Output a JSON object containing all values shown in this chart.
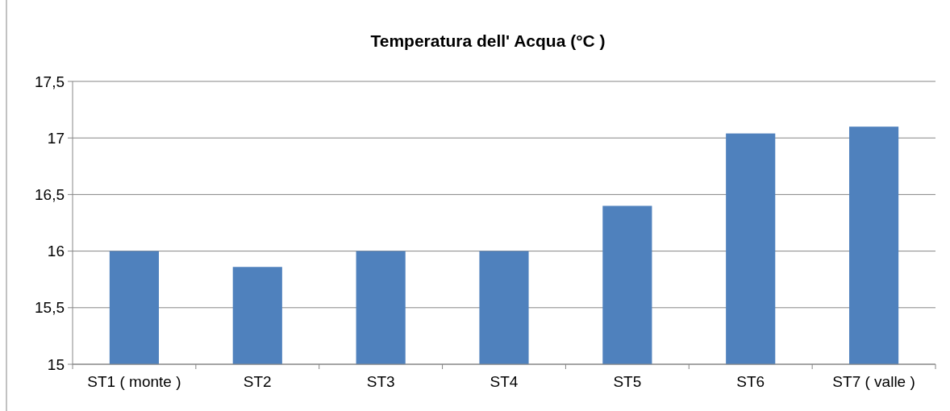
{
  "chart_data": {
    "type": "bar",
    "title": "Temperatura dell' Acqua (°C )",
    "categories": [
      "ST1 ( monte )",
      "ST2",
      "ST3",
      "ST4",
      "ST5",
      "ST6",
      "ST7 ( valle )"
    ],
    "values": [
      16,
      15.86,
      16,
      16,
      16.4,
      17.04,
      17.1
    ],
    "color": "#4f81bd",
    "ylim": [
      15,
      17.5
    ],
    "yticks": [
      15,
      {
        "value": 15.5,
        "label": "15,5"
      },
      16,
      {
        "value": 16.5,
        "label": "16,5"
      },
      17,
      {
        "value": 17.5,
        "label": "17,5"
      }
    ],
    "grid": "y"
  }
}
